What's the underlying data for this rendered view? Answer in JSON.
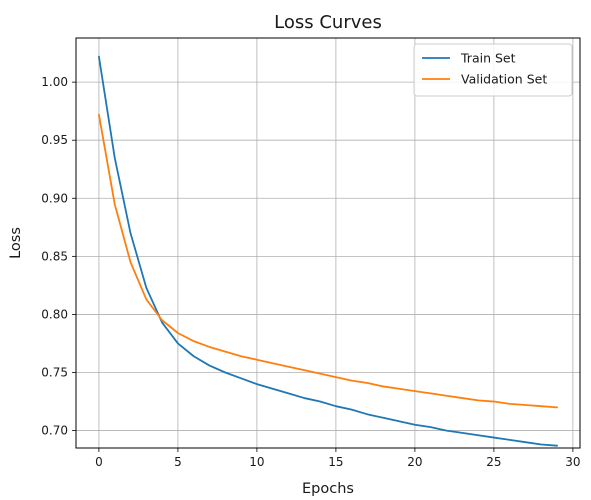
{
  "chart_data": {
    "type": "line",
    "title": "Loss Curves",
    "xlabel": "Epochs",
    "ylabel": "Loss",
    "xlim": [
      -1.45,
      30.45
    ],
    "ylim": [
      0.685,
      1.038
    ],
    "xticks": [
      0,
      5,
      10,
      15,
      20,
      25,
      30
    ],
    "yticks": [
      0.7,
      0.75,
      0.8,
      0.85,
      0.9,
      0.95,
      1.0
    ],
    "grid": true,
    "legend_position": "top-right",
    "x": [
      0,
      1,
      2,
      3,
      4,
      5,
      6,
      7,
      8,
      9,
      10,
      11,
      12,
      13,
      14,
      15,
      16,
      17,
      18,
      19,
      20,
      21,
      22,
      23,
      24,
      25,
      26,
      27,
      28,
      29
    ],
    "series": [
      {
        "name": "Train Set",
        "color": "#1f77b4",
        "values": [
          1.022,
          0.935,
          0.87,
          0.823,
          0.793,
          0.775,
          0.764,
          0.756,
          0.75,
          0.745,
          0.74,
          0.736,
          0.732,
          0.728,
          0.725,
          0.721,
          0.718,
          0.714,
          0.711,
          0.708,
          0.705,
          0.703,
          0.7,
          0.698,
          0.696,
          0.694,
          0.692,
          0.69,
          0.688,
          0.687
        ]
      },
      {
        "name": "Validation Set",
        "color": "#ff7f0e",
        "values": [
          0.972,
          0.895,
          0.845,
          0.813,
          0.795,
          0.784,
          0.777,
          0.772,
          0.768,
          0.764,
          0.761,
          0.758,
          0.755,
          0.752,
          0.749,
          0.746,
          0.743,
          0.741,
          0.738,
          0.736,
          0.734,
          0.732,
          0.73,
          0.728,
          0.726,
          0.725,
          0.723,
          0.722,
          0.721,
          0.72
        ]
      }
    ]
  }
}
